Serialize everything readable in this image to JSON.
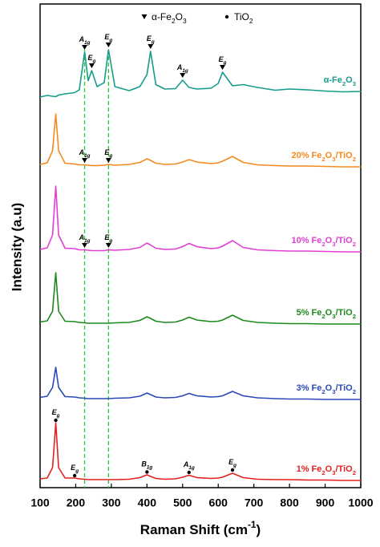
{
  "chart_data": {
    "type": "line",
    "xlabel": "Raman Shift (cm-1)",
    "ylabel": "Intensity (a.u)",
    "xlim": [
      100,
      1000
    ],
    "xticks": [
      100,
      200,
      300,
      400,
      500,
      600,
      700,
      800,
      900,
      1000
    ],
    "ylim": [
      0,
      120
    ],
    "x": [
      100,
      120,
      135,
      144,
      152,
      170,
      197,
      210,
      225,
      235,
      245,
      260,
      280,
      292,
      310,
      350,
      380,
      400,
      410,
      425,
      450,
      480,
      500,
      518,
      540,
      580,
      600,
      612,
      640,
      670,
      710,
      760,
      800,
      850,
      900,
      950,
      1000
    ],
    "series": [
      {
        "name": "α-Fe2O3",
        "color": "#169c8c",
        "values": [
          97.4,
          97.8,
          97.6,
          97.5,
          97.9,
          98.2,
          98.5,
          99.2,
          108.6,
          101.5,
          104,
          100,
          101,
          109.2,
          100,
          99,
          100,
          103,
          108.8,
          100.5,
          99.4,
          99.5,
          101.6,
          99.8,
          99.4,
          99.6,
          100.8,
          103.6,
          100.2,
          100.5,
          99.8,
          99.1,
          99.4,
          99.2,
          98.9,
          98.7,
          98.8
        ]
      },
      {
        "name": "20% Fe2O3/TiO2",
        "color": "#f58a1f",
        "values": [
          80.6,
          81,
          84,
          93.2,
          84,
          80.9,
          80.7,
          80.5,
          80.5,
          80.4,
          80.3,
          80.3,
          80.4,
          80.6,
          80.4,
          80.6,
          81.1,
          82,
          81.6,
          80.9,
          80.6,
          80.7,
          81.2,
          81.8,
          81.2,
          80.8,
          81,
          81.4,
          82.6,
          81.1,
          80.5,
          80.3,
          80.2,
          80.2,
          80.1,
          80,
          80
        ]
      },
      {
        "name": "10% Fe2O3/TiO2",
        "color": "#e23ed6",
        "values": [
          59.4,
          59.8,
          63,
          75.2,
          63,
          59.7,
          59.6,
          59.3,
          59.3,
          59.2,
          59.1,
          59.1,
          59.1,
          59.3,
          59.2,
          59.4,
          59.9,
          61,
          60.5,
          59.7,
          59.4,
          59.5,
          60.1,
          60.9,
          60.1,
          59.6,
          59.8,
          60.2,
          61.6,
          59.9,
          59.3,
          59.1,
          59,
          59,
          58.9,
          58.8,
          58.8
        ]
      },
      {
        "name": "5% Fe2O3/TiO2",
        "color": "#1b8a1b",
        "values": [
          41.3,
          41.6,
          44,
          53.6,
          44,
          41.5,
          41.4,
          41.2,
          41.1,
          41,
          41,
          41,
          41,
          41,
          41.1,
          41.2,
          41.7,
          42.6,
          42.2,
          41.5,
          41.2,
          41.3,
          41.8,
          42.5,
          41.8,
          41.4,
          41.5,
          41.8,
          43,
          41.7,
          41.2,
          41,
          40.9,
          40.9,
          40.8,
          40.8,
          40.8
        ]
      },
      {
        "name": "3% Fe2O3/TiO2",
        "color": "#2a48b8",
        "values": [
          22.5,
          22.8,
          25,
          30,
          25,
          22.7,
          22.6,
          22.4,
          22.3,
          22.2,
          22.2,
          22.2,
          22.2,
          22.2,
          22.3,
          22.4,
          22.8,
          23.6,
          23.2,
          22.6,
          22.4,
          22.5,
          22.9,
          23.5,
          22.9,
          22.6,
          22.7,
          22.9,
          24,
          22.9,
          22.4,
          22.2,
          22.1,
          22.1,
          22,
          22,
          22
        ]
      },
      {
        "name": "1% Fe2O3/TiO2",
        "color": "#e3201f",
        "values": [
          2.2,
          2.4,
          5,
          16.2,
          5,
          2.4,
          2.4,
          2.2,
          2.1,
          2,
          2,
          2,
          2,
          2,
          2,
          2.1,
          2.5,
          3.2,
          2.8,
          2.3,
          2.1,
          2.2,
          2.6,
          3.1,
          2.5,
          2.3,
          2.4,
          2.6,
          3.6,
          2.5,
          2.1,
          2,
          2,
          1.9,
          1.9,
          1.8,
          1.8
        ]
      }
    ],
    "reference_lines": {
      "color": "#22cc22",
      "x": [
        225,
        292
      ]
    },
    "symbol_legend": [
      {
        "symbol": "triangle",
        "label": "α-Fe2O3"
      },
      {
        "symbol": "circle",
        "label": "TiO2"
      }
    ],
    "annotations": [
      {
        "text": "A1g",
        "x": 225,
        "y": 109.8,
        "symbol": "triangle"
      },
      {
        "text": "Eg",
        "x": 245,
        "y": 105.2,
        "symbol": "triangle"
      },
      {
        "text": "Eg",
        "x": 292,
        "y": 110.4,
        "symbol": "triangle"
      },
      {
        "text": "Eg",
        "x": 410,
        "y": 110,
        "symbol": "triangle"
      },
      {
        "text": "A1g",
        "x": 500,
        "y": 102.8,
        "symbol": "triangle"
      },
      {
        "text": "Eg",
        "x": 612,
        "y": 104.8,
        "symbol": "triangle"
      },
      {
        "text": "A1g",
        "x": 225,
        "y": 81.6,
        "symbol": "triangle"
      },
      {
        "text": "Eg",
        "x": 292,
        "y": 81.6,
        "symbol": "triangle"
      },
      {
        "text": "A1g",
        "x": 225,
        "y": 60.4,
        "symbol": "triangle"
      },
      {
        "text": "Eg",
        "x": 292,
        "y": 60.4,
        "symbol": "triangle"
      },
      {
        "text": "Eg",
        "x": 144,
        "y": 16.8,
        "symbol": "circle"
      },
      {
        "text": "Eg",
        "x": 197,
        "y": 3,
        "symbol": "circle"
      },
      {
        "text": "B1g",
        "x": 400,
        "y": 3.9,
        "symbol": "circle"
      },
      {
        "text": "A1g",
        "x": 518,
        "y": 3.8,
        "symbol": "circle"
      },
      {
        "text": "Eg",
        "x": 640,
        "y": 4.4,
        "symbol": "circle"
      }
    ]
  }
}
